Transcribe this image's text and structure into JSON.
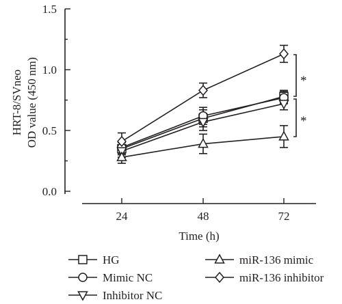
{
  "chart_data": {
    "type": "line",
    "x": [
      "24",
      "48",
      "72"
    ],
    "xlabel": "Time (h)",
    "ylabel_lines": [
      "HRT-8/SVneo",
      "OD value (450 nm)"
    ],
    "ylim": [
      0,
      1.5
    ],
    "yticks": [
      "0.0",
      "0.5",
      "1.0",
      "1.5"
    ],
    "grid": false,
    "legend_position": "bottom",
    "series": [
      {
        "name": "HG",
        "marker": "square",
        "values": [
          0.35,
          0.6,
          0.78
        ],
        "errors": [
          0.05,
          0.07,
          0.05
        ]
      },
      {
        "name": "Mimic NC",
        "marker": "circle",
        "values": [
          0.36,
          0.62,
          0.77
        ],
        "errors": [
          0.05,
          0.07,
          0.05
        ]
      },
      {
        "name": "Inhibitor NC",
        "marker": "triangle-down",
        "values": [
          0.33,
          0.57,
          0.72
        ],
        "errors": [
          0.05,
          0.07,
          0.05
        ]
      },
      {
        "name": "miR-136 mimic",
        "marker": "triangle-up",
        "values": [
          0.28,
          0.39,
          0.45
        ],
        "errors": [
          0.05,
          0.08,
          0.09
        ]
      },
      {
        "name": "miR-136 inhibitor",
        "marker": "diamond",
        "values": [
          0.41,
          0.83,
          1.13
        ],
        "errors": [
          0.07,
          0.06,
          0.07
        ]
      }
    ],
    "annotations": [
      "*",
      "*"
    ]
  }
}
